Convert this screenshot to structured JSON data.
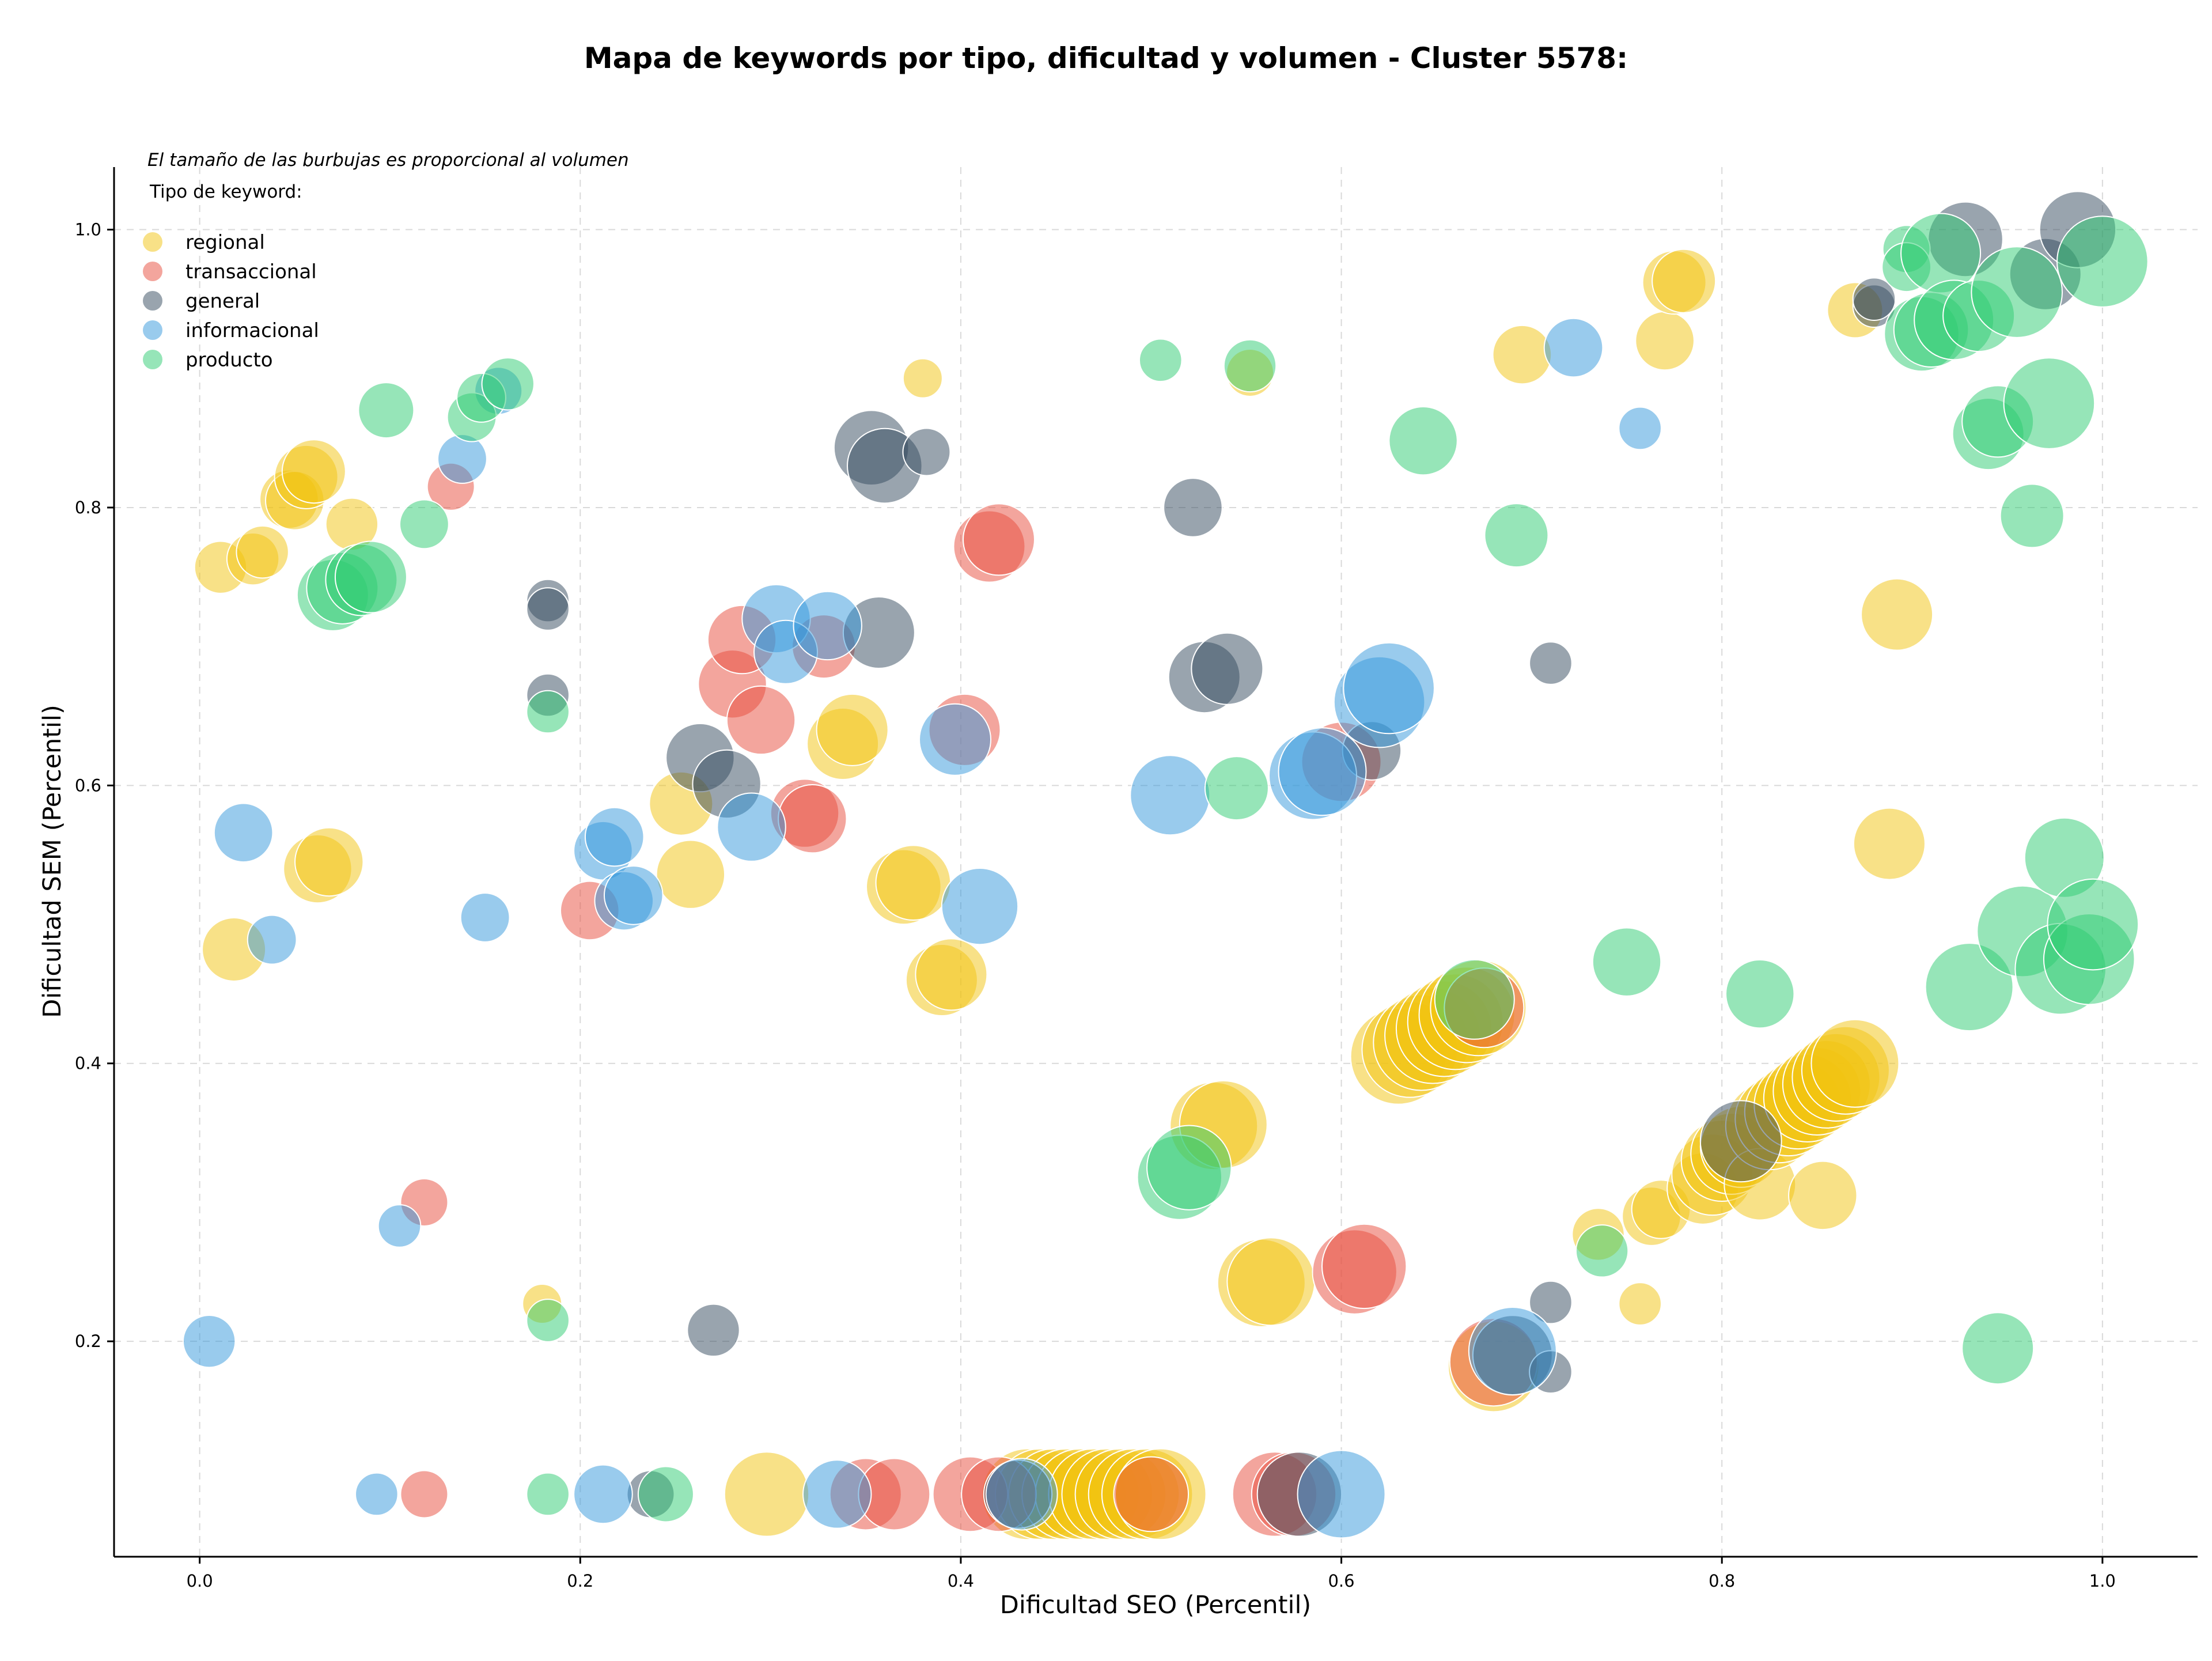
{
  "chart_data": {
    "type": "scatter",
    "title": "Mapa de keywords por tipo, dificultad y volumen - Cluster 5578:",
    "xlabel": "Dificultad SEO (Percentil)",
    "ylabel": "Dificultad SEM (Percentil)",
    "annotation": "El tamaño de las burbujas es proporcional al volumen",
    "legend_title": "Tipo de keyword:",
    "legend_position": "top-left",
    "grid": true,
    "xlim": [
      -0.045,
      1.05
    ],
    "ylim": [
      0.045,
      1.045
    ],
    "xticks": [
      "0.0",
      "0.2",
      "0.4",
      "0.6",
      "0.8",
      "1.0"
    ],
    "yticks": [
      "0.2",
      "0.4",
      "0.6",
      "0.8",
      "1.0"
    ],
    "series": [
      {
        "name": "regional",
        "color": "#f1c40f",
        "points": [
          [
            0.011,
            0.757,
            0.18
          ],
          [
            0.028,
            0.763,
            0.18
          ],
          [
            0.033,
            0.768,
            0.18
          ],
          [
            0.047,
            0.806,
            0.22
          ],
          [
            0.05,
            0.805,
            0.22
          ],
          [
            0.056,
            0.822,
            0.25
          ],
          [
            0.06,
            0.826,
            0.25
          ],
          [
            0.08,
            0.788,
            0.18
          ],
          [
            0.018,
            0.482,
            0.25
          ],
          [
            0.062,
            0.54,
            0.28
          ],
          [
            0.068,
            0.545,
            0.28
          ],
          [
            0.18,
            0.227,
            0.1
          ],
          [
            0.253,
            0.587,
            0.25
          ],
          [
            0.258,
            0.536,
            0.28
          ],
          [
            0.338,
            0.63,
            0.3
          ],
          [
            0.343,
            0.64,
            0.3
          ],
          [
            0.37,
            0.527,
            0.32
          ],
          [
            0.375,
            0.53,
            0.32
          ],
          [
            0.39,
            0.46,
            0.3
          ],
          [
            0.395,
            0.464,
            0.3
          ],
          [
            0.38,
            0.893,
            0.1
          ],
          [
            0.298,
            0.09,
            0.38
          ],
          [
            0.435,
            0.09,
            0.42
          ],
          [
            0.442,
            0.09,
            0.42
          ],
          [
            0.449,
            0.09,
            0.42
          ],
          [
            0.456,
            0.09,
            0.42
          ],
          [
            0.463,
            0.09,
            0.42
          ],
          [
            0.47,
            0.09,
            0.42
          ],
          [
            0.477,
            0.09,
            0.42
          ],
          [
            0.484,
            0.09,
            0.42
          ],
          [
            0.491,
            0.09,
            0.42
          ],
          [
            0.498,
            0.09,
            0.42
          ],
          [
            0.505,
            0.09,
            0.42
          ],
          [
            0.533,
            0.355,
            0.4
          ],
          [
            0.538,
            0.356,
            0.4
          ],
          [
            0.558,
            0.242,
            0.4
          ],
          [
            0.563,
            0.243,
            0.4
          ],
          [
            0.552,
            0.897,
            0.15
          ],
          [
            0.63,
            0.405,
            0.45
          ],
          [
            0.636,
            0.41,
            0.45
          ],
          [
            0.642,
            0.415,
            0.45
          ],
          [
            0.648,
            0.42,
            0.45
          ],
          [
            0.654,
            0.425,
            0.45
          ],
          [
            0.66,
            0.43,
            0.45
          ],
          [
            0.666,
            0.435,
            0.45
          ],
          [
            0.672,
            0.44,
            0.45
          ],
          [
            0.68,
            0.182,
            0.42
          ],
          [
            0.695,
            0.91,
            0.22
          ],
          [
            0.77,
            0.92,
            0.22
          ],
          [
            0.775,
            0.962,
            0.25
          ],
          [
            0.78,
            0.963,
            0.25
          ],
          [
            0.735,
            0.277,
            0.18
          ],
          [
            0.757,
            0.227,
            0.12
          ],
          [
            0.763,
            0.29,
            0.22
          ],
          [
            0.768,
            0.295,
            0.22
          ],
          [
            0.79,
            0.31,
            0.3
          ],
          [
            0.795,
            0.32,
            0.36
          ],
          [
            0.8,
            0.33,
            0.36
          ],
          [
            0.805,
            0.335,
            0.36
          ],
          [
            0.81,
            0.34,
            0.36
          ],
          [
            0.82,
            0.313,
            0.3
          ],
          [
            0.825,
            0.355,
            0.4
          ],
          [
            0.83,
            0.36,
            0.4
          ],
          [
            0.835,
            0.365,
            0.4
          ],
          [
            0.84,
            0.37,
            0.4
          ],
          [
            0.845,
            0.375,
            0.4
          ],
          [
            0.85,
            0.38,
            0.4
          ],
          [
            0.855,
            0.385,
            0.4
          ],
          [
            0.86,
            0.39,
            0.4
          ],
          [
            0.865,
            0.395,
            0.4
          ],
          [
            0.87,
            0.4,
            0.4
          ],
          [
            0.853,
            0.305,
            0.28
          ],
          [
            0.87,
            0.942,
            0.2
          ],
          [
            0.888,
            0.558,
            0.3
          ],
          [
            0.892,
            0.723,
            0.3
          ]
        ]
      },
      {
        "name": "transaccional",
        "color": "#e74c3c",
        "points": [
          [
            0.132,
            0.815,
            0.15
          ],
          [
            0.118,
            0.3,
            0.15
          ],
          [
            0.118,
            0.09,
            0.15
          ],
          [
            0.205,
            0.51,
            0.22
          ],
          [
            0.28,
            0.673,
            0.28
          ],
          [
            0.285,
            0.705,
            0.28
          ],
          [
            0.295,
            0.647,
            0.28
          ],
          [
            0.318,
            0.58,
            0.28
          ],
          [
            0.322,
            0.576,
            0.28
          ],
          [
            0.328,
            0.7,
            0.25
          ],
          [
            0.35,
            0.09,
            0.3
          ],
          [
            0.365,
            0.09,
            0.3
          ],
          [
            0.402,
            0.64,
            0.3
          ],
          [
            0.415,
            0.772,
            0.3
          ],
          [
            0.42,
            0.777,
            0.3
          ],
          [
            0.405,
            0.09,
            0.32
          ],
          [
            0.42,
            0.09,
            0.32
          ],
          [
            0.5,
            0.09,
            0.32
          ],
          [
            0.565,
            0.09,
            0.38
          ],
          [
            0.575,
            0.09,
            0.38
          ],
          [
            0.6,
            0.617,
            0.35
          ],
          [
            0.607,
            0.25,
            0.38
          ],
          [
            0.612,
            0.254,
            0.38
          ],
          [
            0.675,
            0.44,
            0.35
          ],
          [
            0.68,
            0.185,
            0.4
          ]
        ]
      },
      {
        "name": "general",
        "color": "#34495e",
        "points": [
          [
            0.183,
            0.733,
            0.12
          ],
          [
            0.183,
            0.727,
            0.12
          ],
          [
            0.183,
            0.665,
            0.12
          ],
          [
            0.263,
            0.62,
            0.28
          ],
          [
            0.277,
            0.601,
            0.28
          ],
          [
            0.27,
            0.208,
            0.18
          ],
          [
            0.353,
            0.843,
            0.32
          ],
          [
            0.36,
            0.83,
            0.32
          ],
          [
            0.357,
            0.71,
            0.3
          ],
          [
            0.382,
            0.84,
            0.15
          ],
          [
            0.237,
            0.09,
            0.15
          ],
          [
            0.43,
            0.09,
            0.28
          ],
          [
            0.522,
            0.8,
            0.22
          ],
          [
            0.528,
            0.678,
            0.3
          ],
          [
            0.54,
            0.684,
            0.3
          ],
          [
            0.578,
            0.09,
            0.38
          ],
          [
            0.616,
            0.625,
            0.22
          ],
          [
            0.69,
            0.19,
            0.35
          ],
          [
            0.71,
            0.688,
            0.12
          ],
          [
            0.71,
            0.178,
            0.12
          ],
          [
            0.71,
            0.228,
            0.12
          ],
          [
            0.81,
            0.344,
            0.36
          ],
          [
            0.88,
            0.945,
            0.12
          ],
          [
            0.88,
            0.95,
            0.12
          ],
          [
            0.928,
            0.993,
            0.32
          ],
          [
            0.97,
            0.968,
            0.3
          ],
          [
            0.987,
            1.0,
            0.33
          ]
        ]
      },
      {
        "name": "informacional",
        "color": "#3498db",
        "points": [
          [
            0.005,
            0.2,
            0.18
          ],
          [
            0.023,
            0.566,
            0.22
          ],
          [
            0.038,
            0.489,
            0.16
          ],
          [
            0.093,
            0.09,
            0.12
          ],
          [
            0.105,
            0.283,
            0.12
          ],
          [
            0.138,
            0.835,
            0.16
          ],
          [
            0.15,
            0.505,
            0.16
          ],
          [
            0.157,
            0.884,
            0.15
          ],
          [
            0.212,
            0.553,
            0.22
          ],
          [
            0.218,
            0.563,
            0.22
          ],
          [
            0.223,
            0.517,
            0.22
          ],
          [
            0.228,
            0.521,
            0.22
          ],
          [
            0.212,
            0.09,
            0.22
          ],
          [
            0.29,
            0.57,
            0.28
          ],
          [
            0.303,
            0.72,
            0.28
          ],
          [
            0.308,
            0.696,
            0.25
          ],
          [
            0.33,
            0.715,
            0.28
          ],
          [
            0.335,
            0.09,
            0.28
          ],
          [
            0.397,
            0.633,
            0.3
          ],
          [
            0.41,
            0.513,
            0.33
          ],
          [
            0.432,
            0.09,
            0.3
          ],
          [
            0.51,
            0.593,
            0.35
          ],
          [
            0.585,
            0.607,
            0.4
          ],
          [
            0.59,
            0.61,
            0.4
          ],
          [
            0.6,
            0.09,
            0.4
          ],
          [
            0.62,
            0.66,
            0.42
          ],
          [
            0.625,
            0.67,
            0.42
          ],
          [
            0.69,
            0.193,
            0.4
          ],
          [
            0.722,
            0.915,
            0.22
          ],
          [
            0.757,
            0.857,
            0.12
          ]
        ]
      },
      {
        "name": "producto",
        "color": "#2ecc71",
        "points": [
          [
            0.07,
            0.737,
            0.3
          ],
          [
            0.075,
            0.742,
            0.3
          ],
          [
            0.085,
            0.748,
            0.3
          ],
          [
            0.09,
            0.75,
            0.3
          ],
          [
            0.098,
            0.87,
            0.2
          ],
          [
            0.118,
            0.788,
            0.16
          ],
          [
            0.143,
            0.865,
            0.16
          ],
          [
            0.148,
            0.879,
            0.16
          ],
          [
            0.162,
            0.889,
            0.18
          ],
          [
            0.183,
            0.653,
            0.12
          ],
          [
            0.183,
            0.215,
            0.12
          ],
          [
            0.183,
            0.09,
            0.12
          ],
          [
            0.245,
            0.09,
            0.2
          ],
          [
            0.505,
            0.906,
            0.12
          ],
          [
            0.515,
            0.318,
            0.38
          ],
          [
            0.52,
            0.325,
            0.38
          ],
          [
            0.545,
            0.598,
            0.25
          ],
          [
            0.552,
            0.902,
            0.18
          ],
          [
            0.643,
            0.848,
            0.28
          ],
          [
            0.67,
            0.446,
            0.35
          ],
          [
            0.692,
            0.78,
            0.25
          ],
          [
            0.737,
            0.265,
            0.18
          ],
          [
            0.75,
            0.473,
            0.28
          ],
          [
            0.82,
            0.45,
            0.28
          ],
          [
            0.897,
            0.986,
            0.15
          ],
          [
            0.897,
            0.973,
            0.16
          ],
          [
            0.905,
            0.925,
            0.32
          ],
          [
            0.91,
            0.928,
            0.32
          ],
          [
            0.915,
            0.983,
            0.35
          ],
          [
            0.922,
            0.935,
            0.35
          ],
          [
            0.935,
            0.938,
            0.3
          ],
          [
            0.94,
            0.853,
            0.3
          ],
          [
            0.945,
            0.862,
            0.3
          ],
          [
            0.955,
            0.955,
            0.42
          ],
          [
            0.963,
            0.794,
            0.25
          ],
          [
            0.972,
            0.875,
            0.42
          ],
          [
            0.93,
            0.455,
            0.4
          ],
          [
            0.945,
            0.195,
            0.3
          ],
          [
            0.958,
            0.495,
            0.42
          ],
          [
            0.98,
            0.548,
            0.35
          ],
          [
            0.978,
            0.468,
            0.42
          ],
          [
            0.993,
            0.475,
            0.42
          ],
          [
            0.995,
            0.5,
            0.42
          ],
          [
            1.0,
            0.977,
            0.42
          ]
        ]
      }
    ]
  }
}
